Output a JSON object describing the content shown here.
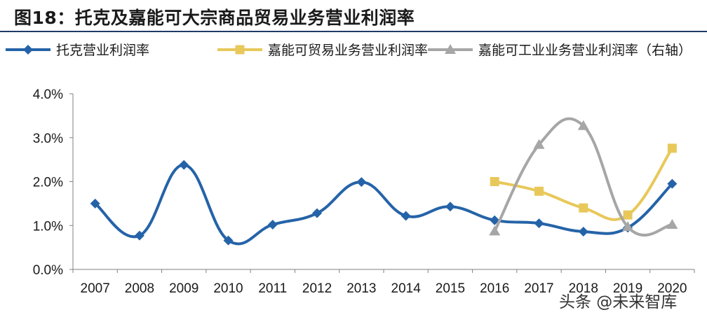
{
  "title": "图18：托克及嘉能可大宗商品贸易业务营业利润率",
  "watermark": "头条 @未来智库",
  "chart_data": {
    "type": "line",
    "categories": [
      "2007",
      "2008",
      "2009",
      "2010",
      "2011",
      "2012",
      "2013",
      "2014",
      "2015",
      "2016",
      "2017",
      "2018",
      "2019",
      "2020"
    ],
    "yticks": [
      "0.0%",
      "1.0%",
      "2.0%",
      "3.0%",
      "4.0%"
    ],
    "ylim": [
      0,
      4
    ],
    "series": [
      {
        "name": "托克营业利润率",
        "color": "#2563a8",
        "marker": "diamond",
        "values": [
          1.5,
          0.77,
          2.38,
          0.66,
          1.02,
          1.28,
          1.99,
          1.22,
          1.43,
          1.12,
          1.05,
          0.86,
          0.95,
          1.95
        ]
      },
      {
        "name": "嘉能可贸易业务营业利润率",
        "color": "#e8c85a",
        "marker": "square",
        "values": [
          null,
          null,
          null,
          null,
          null,
          null,
          null,
          null,
          null,
          2.0,
          1.78,
          1.4,
          1.24,
          2.76
        ]
      },
      {
        "name": "嘉能可工业业务营业利润率（右轴）",
        "color": "#a6a6a6",
        "marker": "triangle",
        "values": [
          null,
          null,
          null,
          null,
          null,
          null,
          null,
          null,
          null,
          0.87,
          2.84,
          3.27,
          0.97,
          1.02
        ]
      }
    ],
    "grid": false,
    "legend_position": "top"
  }
}
